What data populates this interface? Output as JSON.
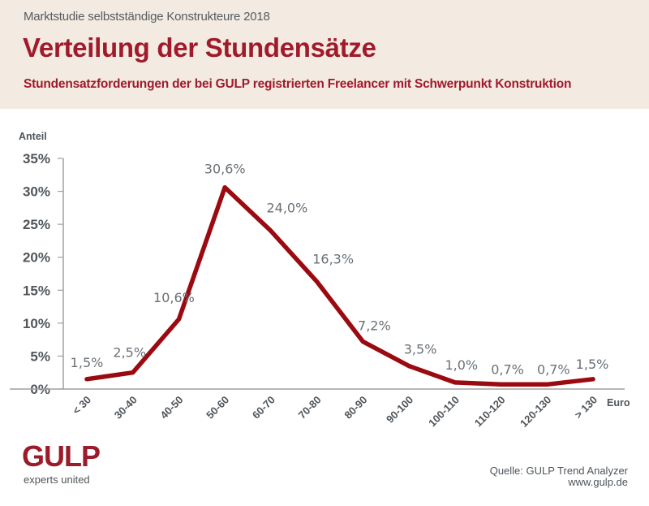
{
  "header": {
    "supertitle": "Marktstudie selbstständige Konstrukteure 2018",
    "title": "Verteilung der Stundensätze",
    "subtitle": "Stundensatzforderungen der bei GULP registrierten Freelancer mit Schwerpunkt Konstruktion"
  },
  "colors": {
    "accent": "#a01a2c",
    "line": "#9b0a10",
    "header_bg": "#f3ebe1",
    "axis": "#a0a0a0",
    "tick_label": "#4f555a",
    "data_label": "#6a7076"
  },
  "chart_data": {
    "type": "line",
    "title": "Verteilung der Stundensätze",
    "xlabel": "Euro",
    "ylabel": "Anteil",
    "categories": [
      "< 30",
      "30-40",
      "40-50",
      "50-60",
      "60-70",
      "70-80",
      "80-90",
      "90-100",
      "100-110",
      "110-120",
      "120-130",
      "> 130"
    ],
    "series": [
      {
        "name": "Anteil",
        "values": [
          1.5,
          2.5,
          10.6,
          30.6,
          24.0,
          16.3,
          7.2,
          3.5,
          1.0,
          0.7,
          0.7,
          1.5
        ],
        "labels": [
          "1,5%",
          "2,5%",
          "10,6%",
          "30,6%",
          "24,0%",
          "16,3%",
          "7,2%",
          "3,5%",
          "1,0%",
          "0,7%",
          "0,7%",
          "1,5%"
        ]
      }
    ],
    "ylim": [
      0,
      35
    ],
    "yticks": [
      0,
      5,
      10,
      15,
      20,
      25,
      30,
      35
    ],
    "ytick_labels": [
      "0%",
      "5%",
      "10%",
      "15%",
      "20%",
      "25%",
      "30%",
      "35%"
    ],
    "grid": false,
    "legend": "none"
  },
  "footer": {
    "logo": "GULP",
    "tagline": "experts united",
    "source_line1": "Quelle: GULP Trend Analyzer",
    "source_line2": "www.gulp.de"
  }
}
